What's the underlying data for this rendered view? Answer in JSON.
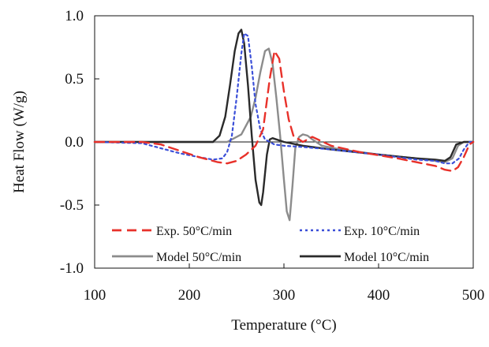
{
  "chart_data": {
    "type": "line",
    "title": "",
    "xlabel": "Temperature (°C)",
    "ylabel": "Heat Flow (W/g)",
    "xlim": [
      100,
      500
    ],
    "ylim": [
      -1.0,
      1.0
    ],
    "x_ticks": [
      100,
      200,
      300,
      400,
      500
    ],
    "x_tick_labels": [
      "100",
      "200",
      "300",
      "400",
      "500"
    ],
    "y_ticks": [
      -1.0,
      -0.5,
      0.0,
      0.5,
      1.0
    ],
    "y_tick_labels": [
      "-1.0",
      "-0.5",
      "0.0",
      "0.5",
      "1.0"
    ],
    "grid": false,
    "legend_position": "inside-bottom",
    "series": [
      {
        "name": "Exp. 50°C/min",
        "color": "#e8312a",
        "style": "dashed",
        "x": [
          100,
          150,
          170,
          190,
          210,
          230,
          240,
          250,
          260,
          270,
          278,
          285,
          290,
          295,
          300,
          305,
          310,
          320,
          330,
          350,
          380,
          420,
          460,
          470,
          478,
          484,
          490,
          496,
          500
        ],
        "y": [
          0.0,
          0.0,
          -0.02,
          -0.07,
          -0.12,
          -0.16,
          -0.17,
          -0.15,
          -0.1,
          -0.03,
          0.1,
          0.5,
          0.72,
          0.66,
          0.4,
          0.18,
          0.05,
          0.0,
          0.04,
          -0.03,
          -0.08,
          -0.13,
          -0.19,
          -0.22,
          -0.23,
          -0.2,
          -0.12,
          -0.02,
          0.0
        ]
      },
      {
        "name": "Exp. 10°C/min",
        "color": "#3b4fd8",
        "style": "dotted",
        "x": [
          100,
          150,
          170,
          190,
          210,
          225,
          235,
          240,
          245,
          250,
          255,
          258,
          262,
          266,
          270,
          275,
          280,
          290,
          300,
          320,
          350,
          400,
          440,
          460,
          470,
          478,
          485,
          490,
          496,
          500
        ],
        "y": [
          0.0,
          -0.01,
          -0.05,
          -0.09,
          -0.12,
          -0.14,
          -0.13,
          -0.08,
          0.05,
          0.35,
          0.7,
          0.86,
          0.84,
          0.6,
          0.3,
          0.1,
          0.02,
          -0.02,
          -0.03,
          -0.04,
          -0.06,
          -0.1,
          -0.14,
          -0.15,
          -0.17,
          -0.17,
          -0.13,
          -0.06,
          0.0,
          0.0
        ]
      },
      {
        "name": "Model 50°C/min",
        "color": "#8c8c8c",
        "style": "solid",
        "x": [
          100,
          200,
          240,
          255,
          265,
          270,
          275,
          280,
          284,
          288,
          292,
          296,
          300,
          303,
          306,
          309,
          312,
          316,
          320,
          325,
          330,
          340,
          360,
          400,
          440,
          460,
          470,
          478,
          484,
          490,
          500
        ],
        "y": [
          0.0,
          0.0,
          0.0,
          0.06,
          0.2,
          0.35,
          0.55,
          0.72,
          0.74,
          0.62,
          0.35,
          0.05,
          -0.3,
          -0.55,
          -0.62,
          -0.35,
          -0.05,
          0.04,
          0.06,
          0.05,
          0.02,
          -0.03,
          -0.06,
          -0.1,
          -0.13,
          -0.15,
          -0.16,
          -0.13,
          -0.03,
          0.0,
          0.0
        ]
      },
      {
        "name": "Model 10°C/min",
        "color": "#2a2a2a",
        "style": "solid",
        "x": [
          100,
          200,
          225,
          232,
          238,
          243,
          248,
          252,
          255,
          258,
          262,
          266,
          270,
          274,
          276,
          278,
          282,
          285,
          288,
          292,
          300,
          320,
          350,
          400,
          440,
          460,
          470,
          476,
          482,
          490,
          500
        ],
        "y": [
          0.0,
          0.0,
          0.0,
          0.05,
          0.2,
          0.45,
          0.72,
          0.86,
          0.89,
          0.78,
          0.45,
          0.05,
          -0.3,
          -0.48,
          -0.5,
          -0.4,
          -0.1,
          0.02,
          0.03,
          0.02,
          0.0,
          -0.03,
          -0.06,
          -0.1,
          -0.13,
          -0.14,
          -0.15,
          -0.12,
          -0.02,
          0.0,
          0.0
        ]
      }
    ]
  }
}
